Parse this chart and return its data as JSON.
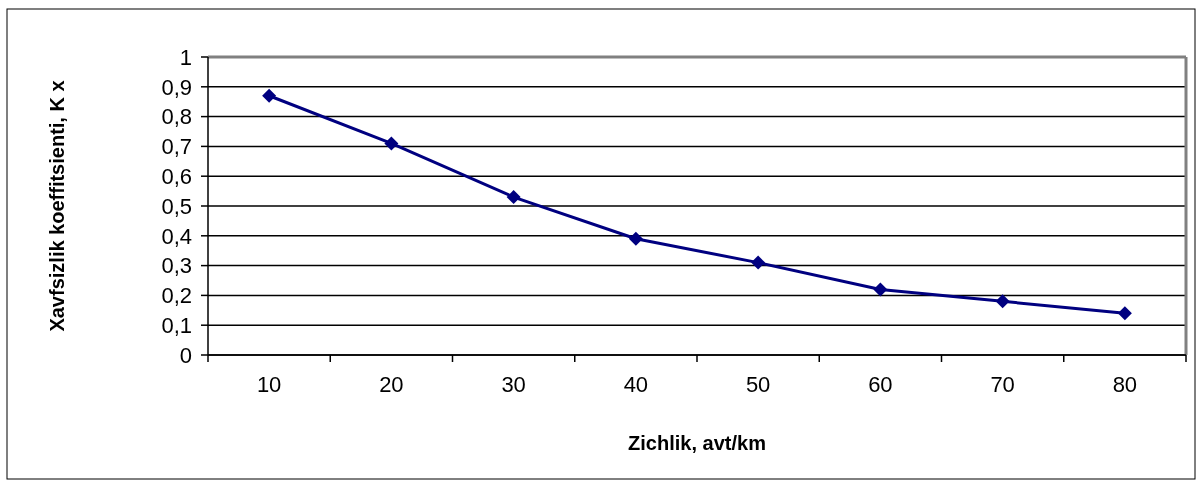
{
  "chart_data": {
    "type": "line",
    "xlabel": "Zichlik,  avt/km",
    "ylabel": "Xavfsizlik koeffitsienti, K x",
    "categories": [
      "10",
      "20",
      "30",
      "40",
      "50",
      "60",
      "70",
      "80"
    ],
    "series": [
      {
        "color": "#000080",
        "values": [
          0.87,
          0.71,
          0.53,
          0.39,
          0.31,
          0.22,
          0.18,
          0.14
        ]
      }
    ],
    "ylim": [
      0,
      1
    ],
    "yticks": [
      0,
      {
        "value": 0.1,
        "label": "0,1"
      },
      {
        "value": 0.2,
        "label": "0,2"
      },
      {
        "value": 0.3,
        "label": "0,3"
      },
      {
        "value": 0.4,
        "label": "0,4"
      },
      {
        "value": 0.5,
        "label": "0,5"
      },
      {
        "value": 0.6,
        "label": "0,6"
      },
      {
        "value": 0.7,
        "label": "0,7"
      },
      {
        "value": 0.8,
        "label": "0,8"
      },
      {
        "value": 0.9,
        "label": "0,9"
      },
      1
    ],
    "grid": "y",
    "marker": "diamond",
    "line_style": "solid"
  }
}
